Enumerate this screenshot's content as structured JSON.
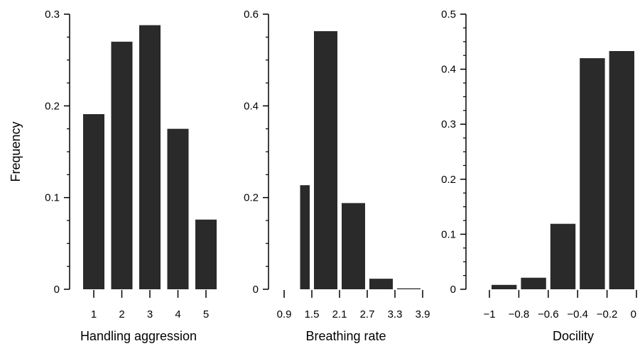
{
  "chart_data": [
    {
      "type": "bar",
      "xlabel": "Handling aggression",
      "ylabel": "Frequency",
      "ylim": [
        0,
        0.3
      ],
      "yticks": [
        {
          "value": 0,
          "label": "0"
        },
        {
          "value": 0.1,
          "label": "0.1"
        },
        {
          "value": 0.2,
          "label": "0.2"
        },
        {
          "value": 0.3,
          "label": "0.3"
        }
      ],
      "categories": [
        "1",
        "2",
        "3",
        "4",
        "5"
      ],
      "values": [
        0.191,
        0.27,
        0.288,
        0.175,
        0.076
      ],
      "grid": false
    },
    {
      "type": "bar",
      "xlabel": "Breathing rate",
      "ylabel": "",
      "ylim": [
        0,
        0.6
      ],
      "yticks": [
        {
          "value": 0,
          "label": "0"
        },
        {
          "value": 0.2,
          "label": "0.2"
        },
        {
          "value": 0.4,
          "label": "0.4"
        },
        {
          "value": 0.6,
          "label": "0.6"
        }
      ],
      "xticks": [
        {
          "value": 0.9,
          "label": "0.9"
        },
        {
          "value": 1.5,
          "label": "1.5"
        },
        {
          "value": 2.1,
          "label": "2.1"
        },
        {
          "value": 2.7,
          "label": "2.7"
        },
        {
          "value": 3.3,
          "label": "3.3"
        },
        {
          "value": 3.9,
          "label": "3.9"
        }
      ],
      "bin_edges": [
        0.9,
        1.5,
        2.1,
        2.7,
        3.3,
        3.9
      ],
      "values": [
        0.227,
        0.563,
        0.188,
        0.023,
        0.002
      ],
      "grid": false
    },
    {
      "type": "bar",
      "xlabel": "Docility",
      "ylabel": "",
      "ylim": [
        0,
        0.5
      ],
      "yticks": [
        {
          "value": 0,
          "label": "0"
        },
        {
          "value": 0.1,
          "label": "0.1"
        },
        {
          "value": 0.2,
          "label": "0.2"
        },
        {
          "value": 0.3,
          "label": "0.3"
        },
        {
          "value": 0.4,
          "label": "0.4"
        },
        {
          "value": 0.5,
          "label": "0.5"
        }
      ],
      "xticks": [
        {
          "value": -1,
          "label": "−1"
        },
        {
          "value": -0.8,
          "label": "−0.8"
        },
        {
          "value": -0.6,
          "label": "−0.6"
        },
        {
          "value": -0.4,
          "label": "−0.4"
        },
        {
          "value": -0.2,
          "label": "−0.2"
        },
        {
          "value": 0,
          "label": "0"
        }
      ],
      "bin_edges": [
        -1.2,
        -1,
        -0.8,
        -0.6,
        -0.4,
        -0.2,
        0
      ],
      "values": [
        0,
        0.008,
        0.021,
        0.119,
        0.42,
        0.433
      ],
      "grid": false
    }
  ],
  "colors": {
    "bar": "#2a2a2a",
    "axis": "#000000",
    "background": "#ffffff"
  }
}
